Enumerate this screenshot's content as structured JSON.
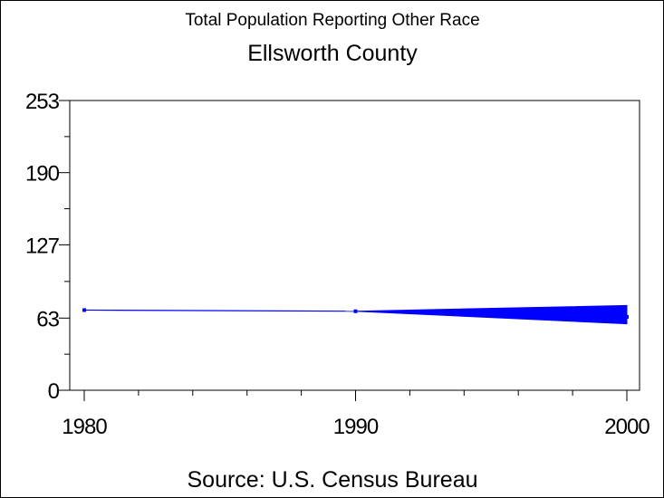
{
  "chart_data": {
    "type": "line",
    "title": "Total Population Reporting Other Race",
    "subtitle": "Ellsworth County",
    "footnote": "Source: U.S. Census Bureau",
    "xlabel": "",
    "ylabel": "",
    "x": [
      1980,
      1990,
      2000
    ],
    "x_tick_labels": [
      "1980",
      "1990",
      "2000"
    ],
    "x_minor_ticks": [
      1982,
      1984,
      1986,
      1988,
      1992,
      1994,
      1996,
      1998
    ],
    "y_ticks": [
      0,
      63,
      127,
      190,
      253
    ],
    "y_tick_labels": [
      "0",
      "63",
      "127",
      "190",
      "253"
    ],
    "y_minor_ticks": [
      31.5,
      95,
      158.5,
      221.5
    ],
    "ylim": [
      0,
      253
    ],
    "grid": false,
    "series": [
      {
        "values": [
          70,
          69,
          64
        ],
        "range_at_end": [
          58,
          74
        ],
        "color": "#0000ff"
      }
    ]
  }
}
